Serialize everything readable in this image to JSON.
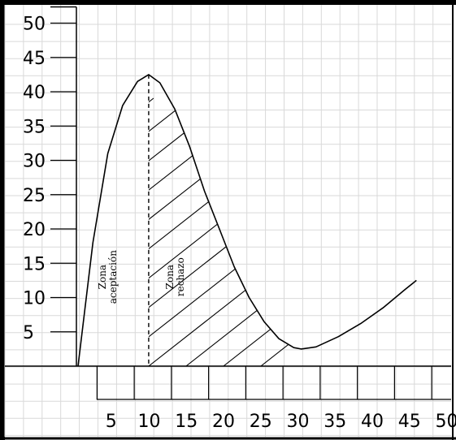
{
  "chart_data": {
    "type": "line",
    "title": "",
    "xlabel": "",
    "ylabel": "",
    "xlim": [
      0,
      50
    ],
    "ylim": [
      0,
      50
    ],
    "grid": true,
    "x_ticks": [
      "5",
      "10",
      "15",
      "20",
      "25",
      "30",
      "35",
      "40",
      "45",
      "50"
    ],
    "y_ticks": [
      "50",
      "45",
      "40",
      "35",
      "30",
      "25",
      "20",
      "15",
      "10",
      "5"
    ],
    "series": [
      {
        "points": [
          [
            0,
            0
          ],
          [
            2,
            18
          ],
          [
            4,
            31
          ],
          [
            6,
            38
          ],
          [
            8,
            41.5
          ],
          [
            9.5,
            42.5
          ],
          [
            11,
            41.3
          ],
          [
            13,
            37.5
          ],
          [
            15,
            32
          ],
          [
            17,
            25.5
          ],
          [
            19,
            20
          ],
          [
            21,
            14.5
          ],
          [
            23,
            10
          ],
          [
            25,
            6.5
          ],
          [
            27,
            4
          ],
          [
            29,
            2.7
          ],
          [
            30,
            2.5
          ],
          [
            32,
            2.8
          ],
          [
            35,
            4.3
          ],
          [
            38,
            6.2
          ],
          [
            41,
            8.5
          ],
          [
            44,
            11.2
          ],
          [
            45.5,
            12.5
          ]
        ]
      }
    ],
    "cutoff_x": 9.5,
    "regions": [
      {
        "label": "Zona aceptación",
        "x_range": [
          0,
          9.5
        ],
        "hatched": false
      },
      {
        "label": "Zona rechazo",
        "x_range": [
          9.5,
          29.5
        ],
        "hatched": true
      }
    ],
    "colors": {
      "curve": "#000000",
      "grid": "#d9d9d9",
      "border": "#000000"
    }
  }
}
